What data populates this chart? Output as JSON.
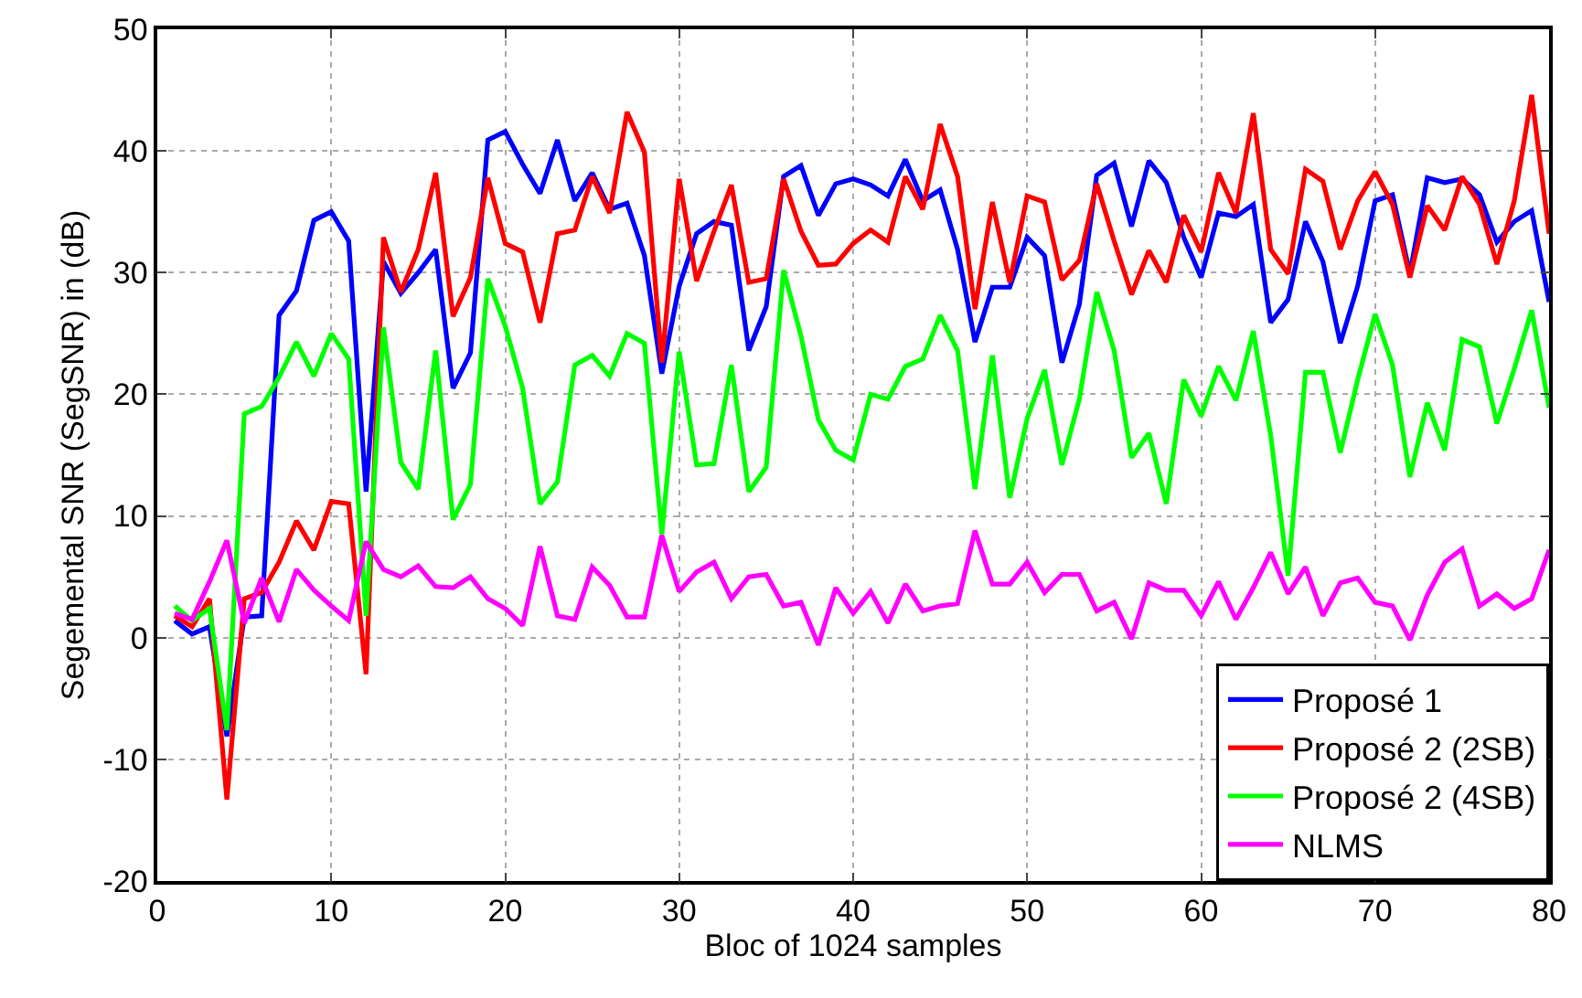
{
  "chart_data": {
    "type": "line",
    "xlabel": "Bloc of 1024 samples",
    "ylabel": "Segemental SNR (SegSNR) in (dB)",
    "x": [
      1,
      2,
      3,
      4,
      5,
      6,
      7,
      8,
      9,
      10,
      11,
      12,
      13,
      14,
      15,
      16,
      17,
      18,
      19,
      20,
      21,
      22,
      23,
      24,
      25,
      26,
      27,
      28,
      29,
      30,
      31,
      32,
      33,
      34,
      35,
      36,
      37,
      38,
      39,
      40,
      41,
      42,
      43,
      44,
      45,
      46,
      47,
      48,
      49,
      50,
      51,
      52,
      53,
      54,
      55,
      56,
      57,
      58,
      59,
      60,
      61,
      62,
      63,
      64,
      65,
      66,
      67,
      68,
      69,
      70,
      71,
      72,
      73,
      74,
      75,
      76,
      77,
      78,
      79,
      80
    ],
    "series": [
      {
        "name": "Proposé 1",
        "color": "#0000ff",
        "values": [
          1.4,
          0.3,
          0.9,
          -8.1,
          1.7,
          1.8,
          26.5,
          28.5,
          34.3,
          35,
          32.6,
          12,
          30.9,
          28.3,
          30,
          31.9,
          20.5,
          23.4,
          40.9,
          41.6,
          38.9,
          36.5,
          40.9,
          35.9,
          38.2,
          35.2,
          35.7,
          31.4,
          21.7,
          28.9,
          33.2,
          34.2,
          33.9,
          23.6,
          27.2,
          37.9,
          38.8,
          34.7,
          37.3,
          37.7,
          37.2,
          36.3,
          39.3,
          35.9,
          36.8,
          31.9,
          24.3,
          28.8,
          28.8,
          32.9,
          31.4,
          22.6,
          27.4,
          38,
          39,
          33.8,
          39.2,
          37.4,
          32.9,
          29.6,
          34.9,
          34.6,
          35.6,
          25.9,
          27.8,
          34.2,
          30.9,
          24.2,
          28.9,
          35.9,
          36.4,
          29.9,
          37.8,
          37.4,
          37.7,
          36.4,
          32.5,
          34.2,
          35.1,
          27.6
        ]
      },
      {
        "name": "Proposé 2 (2SB)",
        "color": "#ff0000",
        "values": [
          1.8,
          0.9,
          3.2,
          -13.3,
          3.2,
          3.7,
          6.2,
          9.6,
          7.2,
          11.2,
          11,
          -3,
          32.9,
          28.4,
          31.9,
          38.2,
          26.4,
          29.6,
          37.8,
          32.4,
          31.7,
          25.9,
          33.2,
          33.5,
          37.9,
          34.9,
          43.2,
          39.9,
          22.6,
          37.7,
          29.3,
          33.4,
          37.2,
          29.2,
          29.5,
          37.7,
          33.4,
          30.6,
          30.7,
          32.4,
          33.5,
          32.5,
          37.9,
          35.2,
          42.2,
          37.9,
          27,
          35.8,
          29.2,
          36.3,
          35.8,
          29.4,
          31,
          37.3,
          32.6,
          28.2,
          31.8,
          29.2,
          34.7,
          31.7,
          38.2,
          34.9,
          43.1,
          31.9,
          29.9,
          38.5,
          37.5,
          31.9,
          35.9,
          38.3,
          35.6,
          29.6,
          35.5,
          33.5,
          37.9,
          35.6,
          30.7,
          35.9,
          44.6,
          33.2
        ]
      },
      {
        "name": "Proposé 2 (4SB)",
        "color": "#00ff00",
        "values": [
          2.6,
          1.4,
          2.4,
          -7.6,
          18.4,
          19,
          21.4,
          24.3,
          21.5,
          25,
          22.9,
          1.8,
          25.5,
          14.4,
          12.2,
          23.6,
          9.7,
          12.6,
          29.5,
          25.6,
          20.5,
          11,
          12.8,
          22.4,
          23.2,
          21.5,
          25,
          24.2,
          8.5,
          23.5,
          14.2,
          14.3,
          22.4,
          12,
          14,
          30.2,
          24.8,
          17.9,
          15.4,
          14.6,
          20,
          19.6,
          22.3,
          22.9,
          26.5,
          23.6,
          12.2,
          23.2,
          11.5,
          18,
          22,
          14.2,
          19.6,
          28.4,
          23.6,
          14.8,
          16.8,
          11,
          21.2,
          18.2,
          22.3,
          19.5,
          25.2,
          16.6,
          5.1,
          21.8,
          21.8,
          15.2,
          21.2,
          26.6,
          22.4,
          13.2,
          19.3,
          15.4,
          24.5,
          23.9,
          17.6,
          22.1,
          26.9,
          18.9
        ]
      },
      {
        "name": "NLMS",
        "color": "#ff00ff",
        "values": [
          2,
          1.5,
          4.6,
          8,
          1.2,
          4.9,
          1.3,
          5.6,
          3.9,
          2.6,
          1.4,
          7.9,
          5.6,
          5,
          5.9,
          4.2,
          4.1,
          5,
          3.2,
          2.4,
          1,
          7.5,
          1.8,
          1.5,
          5.8,
          4.3,
          1.7,
          1.7,
          8.4,
          3.8,
          5.4,
          6.2,
          3.2,
          5,
          5.2,
          2.6,
          2.9,
          -0.6,
          4.1,
          2,
          3.8,
          1.2,
          4.4,
          2.2,
          2.6,
          2.8,
          8.8,
          4.4,
          4.4,
          6.2,
          3.7,
          5.2,
          5.2,
          2.2,
          2.9,
          -0.1,
          4.5,
          3.9,
          3.9,
          1.8,
          4.6,
          1.5,
          4.1,
          7,
          3.6,
          5.8,
          1.8,
          4.5,
          4.9,
          2.9,
          2.6,
          -0.2,
          3.5,
          6.2,
          7.3,
          2.6,
          3.6,
          2.4,
          3.2,
          7.2
        ]
      }
    ],
    "xlim": [
      0,
      80
    ],
    "xticks": [
      0,
      10,
      20,
      30,
      40,
      50,
      60,
      70,
      80
    ],
    "ylim": [
      -20,
      50
    ],
    "yticks": [
      -20,
      -10,
      0,
      10,
      20,
      30,
      40,
      50
    ],
    "grid": true,
    "legend": "bottom right",
    "line_style": "solid",
    "marker": "none"
  }
}
